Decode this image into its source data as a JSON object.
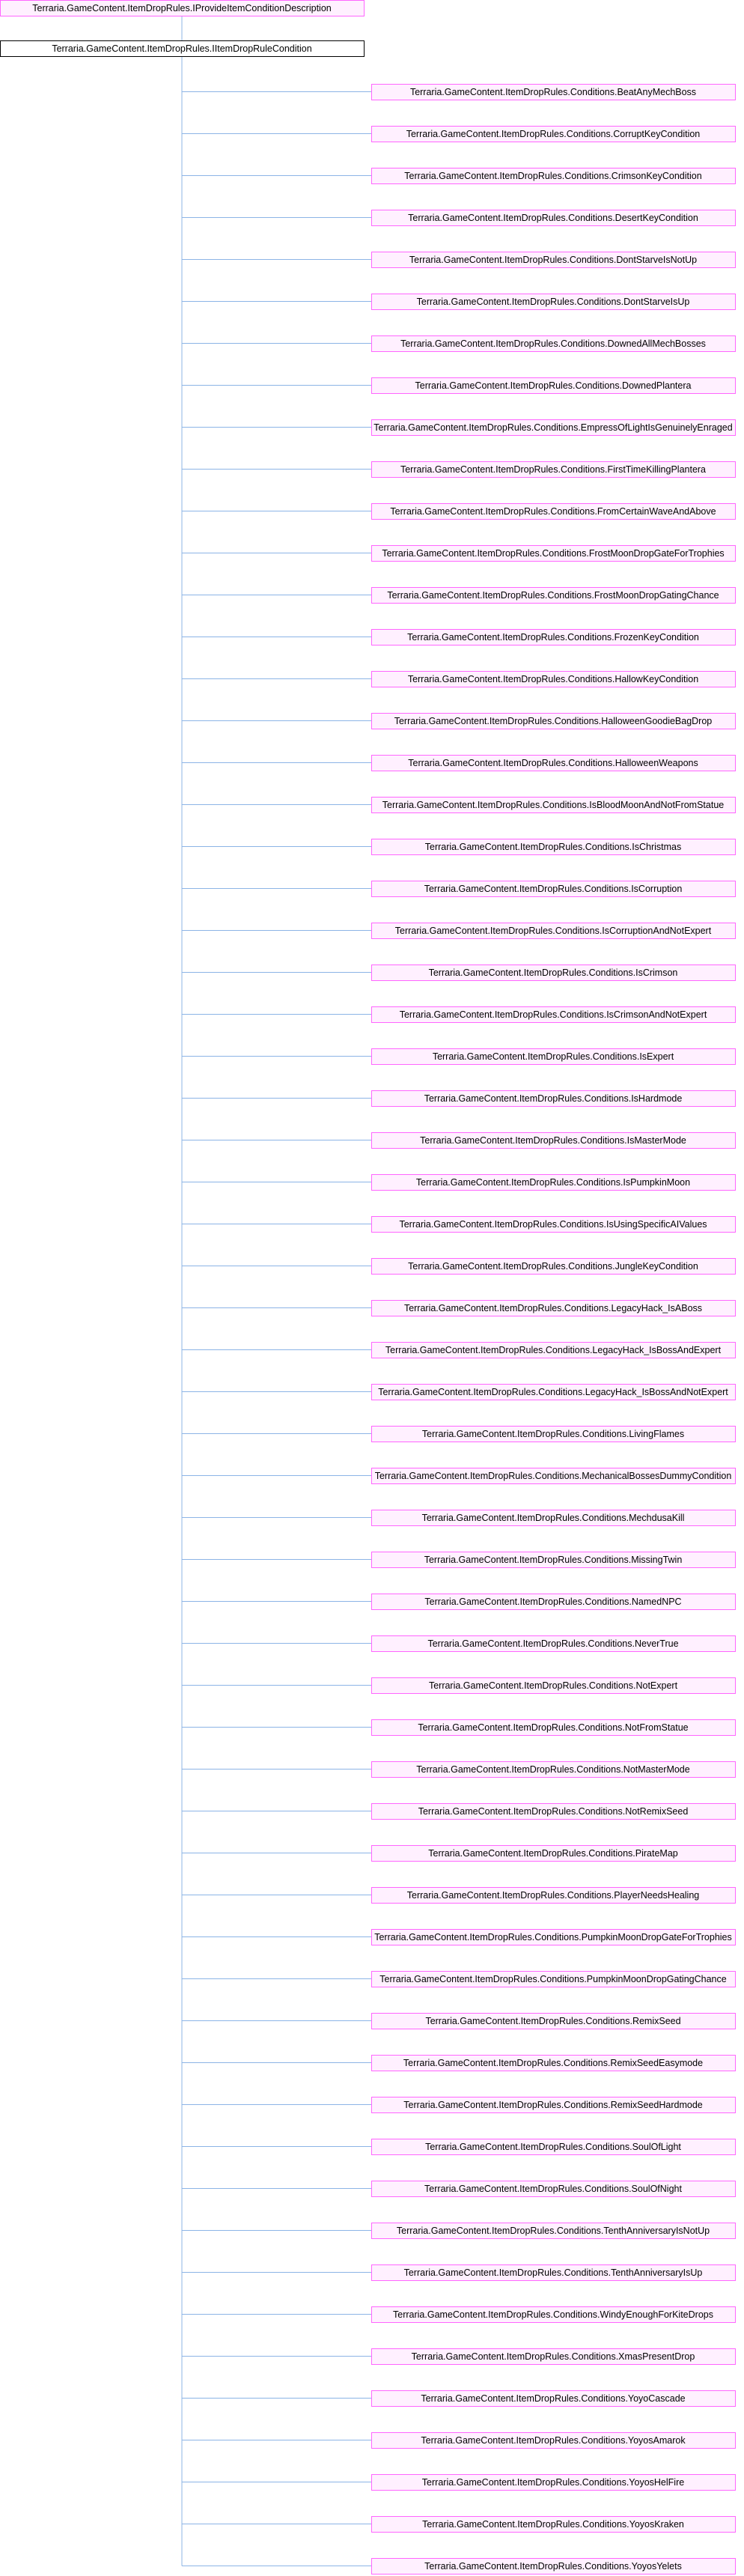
{
  "interface": {
    "label": "Terraria.GameContent.ItemDropRules.IProvideItemConditionDescription"
  },
  "base": {
    "label": "Terraria.GameContent.ItemDropRules.IItemDropRuleCondition"
  },
  "derived": [
    "Terraria.GameContent.ItemDropRules.Conditions.BeatAnyMechBoss",
    "Terraria.GameContent.ItemDropRules.Conditions.CorruptKeyCondition",
    "Terraria.GameContent.ItemDropRules.Conditions.CrimsonKeyCondition",
    "Terraria.GameContent.ItemDropRules.Conditions.DesertKeyCondition",
    "Terraria.GameContent.ItemDropRules.Conditions.DontStarveIsNotUp",
    "Terraria.GameContent.ItemDropRules.Conditions.DontStarveIsUp",
    "Terraria.GameContent.ItemDropRules.Conditions.DownedAllMechBosses",
    "Terraria.GameContent.ItemDropRules.Conditions.DownedPlantera",
    "Terraria.GameContent.ItemDropRules.Conditions.EmpressOfLightIsGenuinelyEnraged",
    "Terraria.GameContent.ItemDropRules.Conditions.FirstTimeKillingPlantera",
    "Terraria.GameContent.ItemDropRules.Conditions.FromCertainWaveAndAbove",
    "Terraria.GameContent.ItemDropRules.Conditions.FrostMoonDropGateForTrophies",
    "Terraria.GameContent.ItemDropRules.Conditions.FrostMoonDropGatingChance",
    "Terraria.GameContent.ItemDropRules.Conditions.FrozenKeyCondition",
    "Terraria.GameContent.ItemDropRules.Conditions.HallowKeyCondition",
    "Terraria.GameContent.ItemDropRules.Conditions.HalloweenGoodieBagDrop",
    "Terraria.GameContent.ItemDropRules.Conditions.HalloweenWeapons",
    "Terraria.GameContent.ItemDropRules.Conditions.IsBloodMoonAndNotFromStatue",
    "Terraria.GameContent.ItemDropRules.Conditions.IsChristmas",
    "Terraria.GameContent.ItemDropRules.Conditions.IsCorruption",
    "Terraria.GameContent.ItemDropRules.Conditions.IsCorruptionAndNotExpert",
    "Terraria.GameContent.ItemDropRules.Conditions.IsCrimson",
    "Terraria.GameContent.ItemDropRules.Conditions.IsCrimsonAndNotExpert",
    "Terraria.GameContent.ItemDropRules.Conditions.IsExpert",
    "Terraria.GameContent.ItemDropRules.Conditions.IsHardmode",
    "Terraria.GameContent.ItemDropRules.Conditions.IsMasterMode",
    "Terraria.GameContent.ItemDropRules.Conditions.IsPumpkinMoon",
    "Terraria.GameContent.ItemDropRules.Conditions.IsUsingSpecificAIValues",
    "Terraria.GameContent.ItemDropRules.Conditions.JungleKeyCondition",
    "Terraria.GameContent.ItemDropRules.Conditions.LegacyHack_IsABoss",
    "Terraria.GameContent.ItemDropRules.Conditions.LegacyHack_IsBossAndExpert",
    "Terraria.GameContent.ItemDropRules.Conditions.LegacyHack_IsBossAndNotExpert",
    "Terraria.GameContent.ItemDropRules.Conditions.LivingFlames",
    "Terraria.GameContent.ItemDropRules.Conditions.MechanicalBossesDummyCondition",
    "Terraria.GameContent.ItemDropRules.Conditions.MechdusaKill",
    "Terraria.GameContent.ItemDropRules.Conditions.MissingTwin",
    "Terraria.GameContent.ItemDropRules.Conditions.NamedNPC",
    "Terraria.GameContent.ItemDropRules.Conditions.NeverTrue",
    "Terraria.GameContent.ItemDropRules.Conditions.NotExpert",
    "Terraria.GameContent.ItemDropRules.Conditions.NotFromStatue",
    "Terraria.GameContent.ItemDropRules.Conditions.NotMasterMode",
    "Terraria.GameContent.ItemDropRules.Conditions.NotRemixSeed",
    "Terraria.GameContent.ItemDropRules.Conditions.PirateMap",
    "Terraria.GameContent.ItemDropRules.Conditions.PlayerNeedsHealing",
    "Terraria.GameContent.ItemDropRules.Conditions.PumpkinMoonDropGateForTrophies",
    "Terraria.GameContent.ItemDropRules.Conditions.PumpkinMoonDropGatingChance",
    "Terraria.GameContent.ItemDropRules.Conditions.RemixSeed",
    "Terraria.GameContent.ItemDropRules.Conditions.RemixSeedEasymode",
    "Terraria.GameContent.ItemDropRules.Conditions.RemixSeedHardmode",
    "Terraria.GameContent.ItemDropRules.Conditions.SoulOfLight",
    "Terraria.GameContent.ItemDropRules.Conditions.SoulOfNight",
    "Terraria.GameContent.ItemDropRules.Conditions.TenthAnniversaryIsNotUp",
    "Terraria.GameContent.ItemDropRules.Conditions.TenthAnniversaryIsUp",
    "Terraria.GameContent.ItemDropRules.Conditions.WindyEnoughForKiteDrops",
    "Terraria.GameContent.ItemDropRules.Conditions.XmasPresentDrop",
    "Terraria.GameContent.ItemDropRules.Conditions.YoyoCascade",
    "Terraria.GameContent.ItemDropRules.Conditions.YoyosAmarok",
    "Terraria.GameContent.ItemDropRules.Conditions.YoyosHelFire",
    "Terraria.GameContent.ItemDropRules.Conditions.YoyosKraken",
    "Terraria.GameContent.ItemDropRules.Conditions.YoyosYelets"
  ]
}
